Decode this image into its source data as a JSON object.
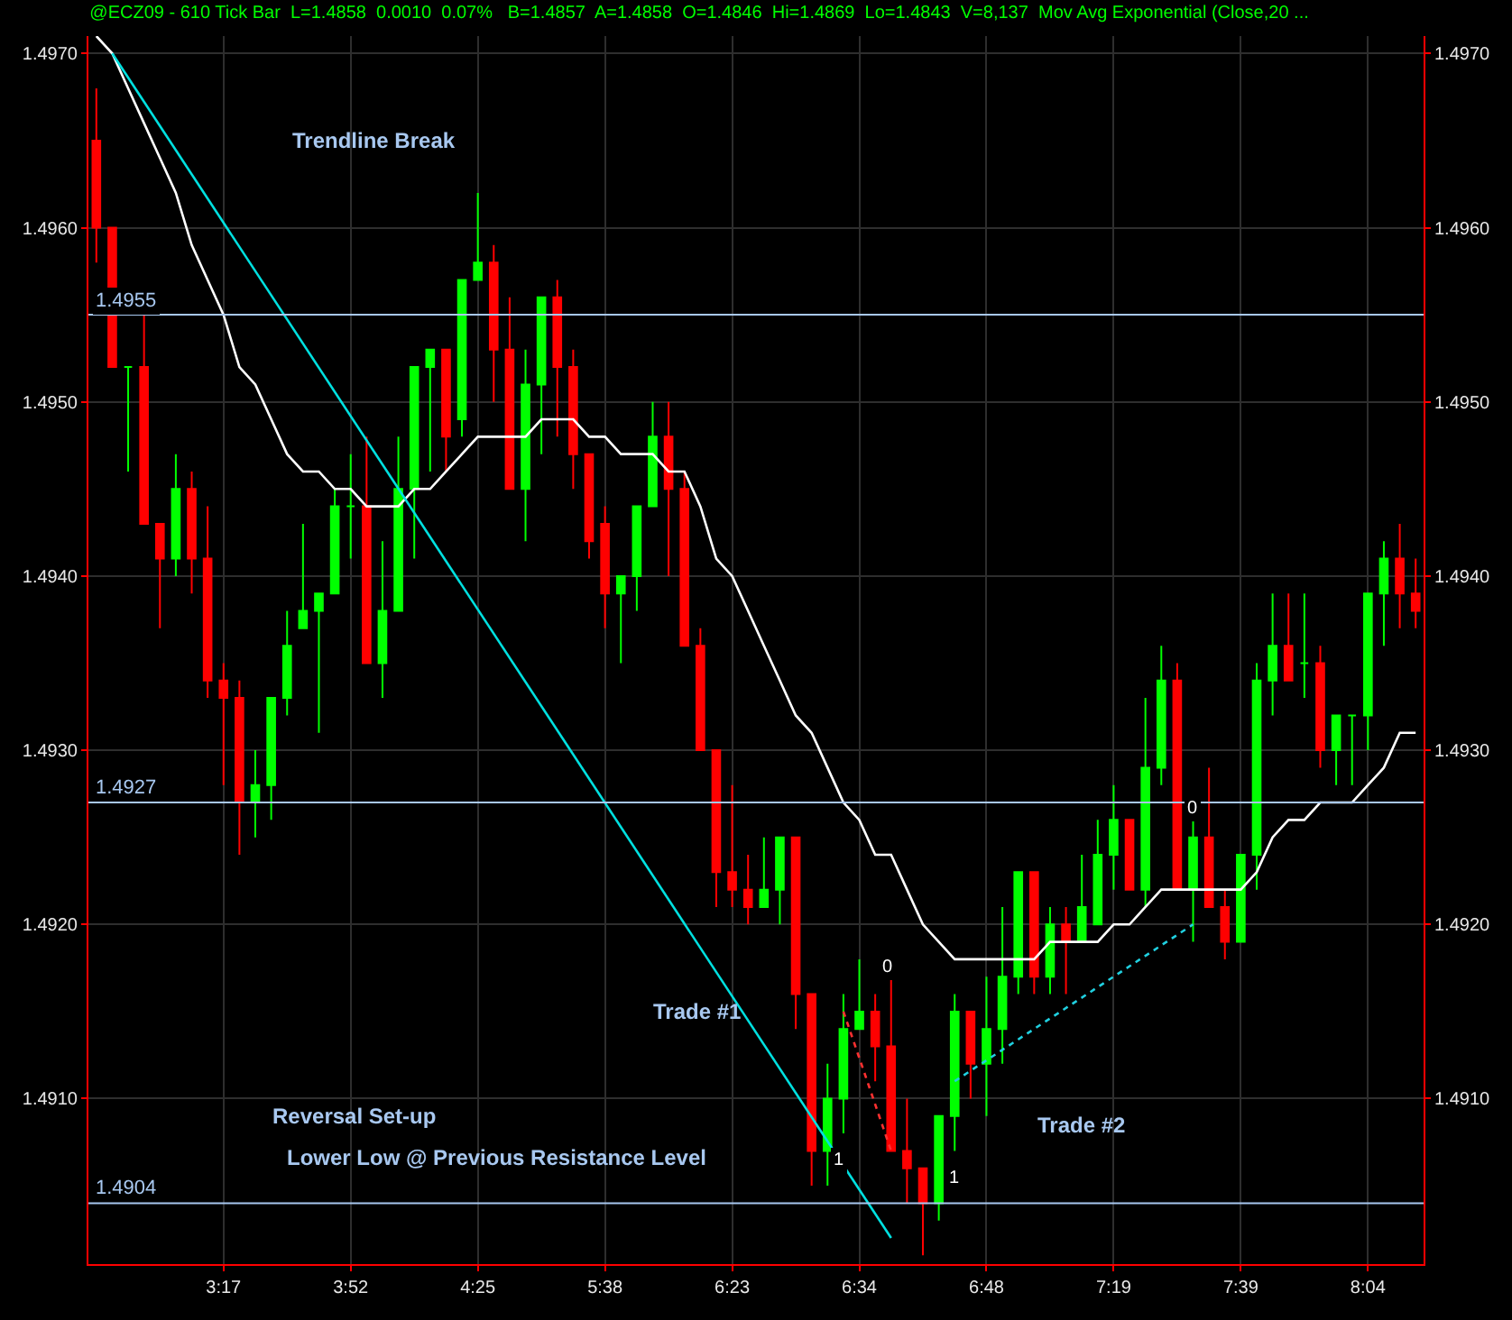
{
  "chart_data": {
    "type": "candlestick",
    "title": "@ECZ09 - 610 Tick Bar  L=1.4858  0.0010  0.07%   B=1.4857  A=1.4858  O=1.4846  Hi=1.4869  Lo=1.4843  V=8,137  Mov Avg Exponential (Close,20 ...",
    "categories": [
      null,
      null,
      null,
      null,
      null,
      null,
      null,
      null,
      "3:17",
      null,
      null,
      null,
      null,
      null,
      null,
      null,
      "3:52",
      null,
      null,
      null,
      null,
      null,
      null,
      null,
      "4:25",
      null,
      null,
      null,
      null,
      null,
      null,
      null,
      "5:38",
      null,
      null,
      null,
      null,
      null,
      null,
      null,
      "6:23",
      null,
      null,
      null,
      null,
      null,
      null,
      null,
      "6:34",
      null,
      null,
      null,
      null,
      null,
      null,
      null,
      "6:48",
      null,
      null,
      null,
      null,
      null,
      null,
      null,
      "7:19",
      null,
      null,
      null,
      null,
      null,
      null,
      null,
      "7:39",
      null,
      null,
      null,
      null,
      null,
      null,
      null,
      "8:04",
      null,
      null,
      null
    ],
    "ohlc": [
      [
        1.4965,
        1.4968,
        1.4958,
        1.496
      ],
      [
        1.496,
        1.496,
        1.4952,
        1.4952
      ],
      [
        1.4952,
        1.4952,
        1.4946,
        1.4952
      ],
      [
        1.4952,
        1.4955,
        1.4943,
        1.4943
      ],
      [
        1.4943,
        1.4943,
        1.4937,
        1.4941
      ],
      [
        1.4941,
        1.4947,
        1.494,
        1.4945
      ],
      [
        1.4945,
        1.4946,
        1.4939,
        1.4941
      ],
      [
        1.4941,
        1.4944,
        1.4933,
        1.4934
      ],
      [
        1.4934,
        1.4935,
        1.4928,
        1.4933
      ],
      [
        1.4933,
        1.4934,
        1.4924,
        1.4927
      ],
      [
        1.4927,
        1.493,
        1.4925,
        1.4928
      ],
      [
        1.4928,
        1.4933,
        1.4926,
        1.4933
      ],
      [
        1.4933,
        1.4938,
        1.4932,
        1.4936
      ],
      [
        1.4937,
        1.4943,
        1.4937,
        1.4938
      ],
      [
        1.4938,
        1.4939,
        1.4931,
        1.4939
      ],
      [
        1.4939,
        1.4945,
        1.4939,
        1.4944
      ],
      [
        1.4944,
        1.4947,
        1.4941,
        1.4944
      ],
      [
        1.4944,
        1.4948,
        1.4935,
        1.4935
      ],
      [
        1.4935,
        1.4942,
        1.4933,
        1.4938
      ],
      [
        1.4938,
        1.4948,
        1.4938,
        1.4945
      ],
      [
        1.4945,
        1.4952,
        1.4941,
        1.4952
      ],
      [
        1.4952,
        1.4953,
        1.4946,
        1.4953
      ],
      [
        1.4953,
        1.4953,
        1.4946,
        1.4948
      ],
      [
        1.4949,
        1.4957,
        1.4948,
        1.4957
      ],
      [
        1.4957,
        1.4962,
        1.4957,
        1.4958
      ],
      [
        1.4958,
        1.4959,
        1.495,
        1.4953
      ],
      [
        1.4953,
        1.4956,
        1.4945,
        1.4945
      ],
      [
        1.4945,
        1.4953,
        1.4942,
        1.4951
      ],
      [
        1.4951,
        1.4956,
        1.4947,
        1.4956
      ],
      [
        1.4956,
        1.4957,
        1.4948,
        1.4952
      ],
      [
        1.4952,
        1.4953,
        1.4945,
        1.4947
      ],
      [
        1.4947,
        1.4947,
        1.4941,
        1.4942
      ],
      [
        1.4943,
        1.4944,
        1.4937,
        1.4939
      ],
      [
        1.4939,
        1.494,
        1.4935,
        1.494
      ],
      [
        1.494,
        1.4944,
        1.4938,
        1.4944
      ],
      [
        1.4944,
        1.495,
        1.4944,
        1.4948
      ],
      [
        1.4948,
        1.495,
        1.494,
        1.4945
      ],
      [
        1.4945,
        1.4946,
        1.4936,
        1.4936
      ],
      [
        1.4936,
        1.4937,
        1.493,
        1.493
      ],
      [
        1.493,
        1.493,
        1.4921,
        1.4923
      ],
      [
        1.4923,
        1.4928,
        1.4921,
        1.4922
      ],
      [
        1.4922,
        1.4924,
        1.492,
        1.4921
      ],
      [
        1.4921,
        1.4925,
        1.4921,
        1.4922
      ],
      [
        1.4922,
        1.4925,
        1.492,
        1.4925
      ],
      [
        1.4925,
        1.4925,
        1.4914,
        1.4916
      ],
      [
        1.4916,
        1.4916,
        1.4905,
        1.4907
      ],
      [
        1.4907,
        1.4912,
        1.4905,
        1.491
      ],
      [
        1.491,
        1.4916,
        1.4908,
        1.4914
      ],
      [
        1.4914,
        1.4918,
        1.4914,
        1.4915
      ],
      [
        1.4915,
        1.4916,
        1.4911,
        1.4913
      ],
      [
        1.4913,
        1.4917,
        1.4907,
        1.4907
      ],
      [
        1.4907,
        1.491,
        1.4904,
        1.4906
      ],
      [
        1.4906,
        1.4906,
        1.4901,
        1.4904
      ],
      [
        1.4904,
        1.4909,
        1.4903,
        1.4909
      ],
      [
        1.4909,
        1.4916,
        1.4907,
        1.4915
      ],
      [
        1.4915,
        1.4915,
        1.491,
        1.4912
      ],
      [
        1.4912,
        1.4917,
        1.4909,
        1.4914
      ],
      [
        1.4914,
        1.4921,
        1.4912,
        1.4917
      ],
      [
        1.4917,
        1.4923,
        1.4916,
        1.4923
      ],
      [
        1.4923,
        1.4923,
        1.4916,
        1.4917
      ],
      [
        1.4917,
        1.4921,
        1.4916,
        1.492
      ],
      [
        1.492,
        1.4921,
        1.4916,
        1.4919
      ],
      [
        1.4919,
        1.4924,
        1.4919,
        1.4921
      ],
      [
        1.492,
        1.4926,
        1.492,
        1.4924
      ],
      [
        1.4924,
        1.4928,
        1.4922,
        1.4926
      ],
      [
        1.4926,
        1.4926,
        1.4922,
        1.4922
      ],
      [
        1.4922,
        1.4933,
        1.4921,
        1.4929
      ],
      [
        1.4929,
        1.4936,
        1.4928,
        1.4934
      ],
      [
        1.4934,
        1.4935,
        1.4922,
        1.4922
      ],
      [
        1.4922,
        1.4926,
        1.4919,
        1.4925
      ],
      [
        1.4925,
        1.4929,
        1.4921,
        1.4921
      ],
      [
        1.4921,
        1.4922,
        1.4918,
        1.4919
      ],
      [
        1.4919,
        1.4924,
        1.4919,
        1.4924
      ],
      [
        1.4924,
        1.4935,
        1.4922,
        1.4934
      ],
      [
        1.4934,
        1.4939,
        1.4932,
        1.4936
      ],
      [
        1.4936,
        1.4939,
        1.4934,
        1.4934
      ],
      [
        1.4935,
        1.4939,
        1.4933,
        1.4935
      ],
      [
        1.4935,
        1.4936,
        1.4929,
        1.493
      ],
      [
        1.493,
        1.4932,
        1.4928,
        1.4932
      ],
      [
        1.4932,
        1.4932,
        1.4928,
        1.4932
      ],
      [
        1.4932,
        1.4939,
        1.493,
        1.4939
      ],
      [
        1.4939,
        1.4942,
        1.4936,
        1.4941
      ],
      [
        1.4941,
        1.4943,
        1.4937,
        1.4939
      ],
      [
        1.4939,
        1.4941,
        1.4937,
        1.4938
      ]
    ],
    "colors": [
      "#ff0000",
      "#ff0000",
      "#00ff00",
      "#ff0000",
      "#ff0000",
      "#00ff00",
      "#ff0000",
      "#ff0000",
      "#ff0000",
      "#ff0000",
      "#00ff00",
      "#00ff00",
      "#00ff00",
      "#00ff00",
      "#00ff00",
      "#00ff00",
      "#00ff00",
      "#ff0000",
      "#00ff00",
      "#00ff00",
      "#00ff00",
      "#00ff00",
      "#ff0000",
      "#00ff00",
      "#00ff00",
      "#ff0000",
      "#ff0000",
      "#00ff00",
      "#00ff00",
      "#ff0000",
      "#ff0000",
      "#ff0000",
      "#ff0000",
      "#00ff00",
      "#00ff00",
      "#00ff00",
      "#ff0000",
      "#ff0000",
      "#ff0000",
      "#ff0000",
      "#ff0000",
      "#ff0000",
      "#00ff00",
      "#00ff00",
      "#ff0000",
      "#ff0000",
      "#00ff00",
      "#00ff00",
      "#00ff00",
      "#ff0000",
      "#ff0000",
      "#ff0000",
      "#ff0000",
      "#00ff00",
      "#00ff00",
      "#ff0000",
      "#00ff00",
      "#00ff00",
      "#00ff00",
      "#ff0000",
      "#00ff00",
      "#ff0000",
      "#00ff00",
      "#00ff00",
      "#00ff00",
      "#ff0000",
      "#00ff00",
      "#00ff00",
      "#ff0000",
      "#00ff00",
      "#ff0000",
      "#ff0000",
      "#00ff00",
      "#00ff00",
      "#00ff00",
      "#ff0000",
      "#00ff00",
      "#ff0000",
      "#00ff00",
      "#00ff00",
      "#00ff00",
      "#00ff00",
      "#ff0000",
      "#ff0000"
    ],
    "series": [
      {
        "type": "line",
        "color": "#ffffff",
        "line_style": "solid",
        "values": [
          1.4971,
          1.497,
          1.4968,
          1.4966,
          1.4964,
          1.4962,
          1.4959,
          1.4957,
          1.4955,
          1.4952,
          1.4951,
          1.4949,
          1.4947,
          1.4946,
          1.4946,
          1.4945,
          1.4945,
          1.4944,
          1.4944,
          1.4944,
          1.4945,
          1.4945,
          1.4946,
          1.4947,
          1.4948,
          1.4948,
          1.4948,
          1.4948,
          1.4949,
          1.4949,
          1.4949,
          1.4948,
          1.4948,
          1.4947,
          1.4947,
          1.4947,
          1.4946,
          1.4946,
          1.4944,
          1.4941,
          1.494,
          1.4938,
          1.4936,
          1.4934,
          1.4932,
          1.4931,
          1.4929,
          1.4927,
          1.4926,
          1.4924,
          1.4924,
          1.4922,
          1.492,
          1.4919,
          1.4918,
          1.4918,
          1.4918,
          1.4918,
          1.4918,
          1.4918,
          1.4919,
          1.4919,
          1.4919,
          1.4919,
          1.492,
          1.492,
          1.4921,
          1.4922,
          1.4922,
          1.4922,
          1.4922,
          1.4922,
          1.4922,
          1.4923,
          1.4925,
          1.4926,
          1.4926,
          1.4927,
          1.4927,
          1.4927,
          1.4928,
          1.4929,
          1.4931,
          1.4931
        ]
      },
      {
        "type": "line",
        "color": "#00e0e0",
        "line_style": "solid",
        "values": [
          null,
          1.497,
          null,
          null,
          null,
          null,
          null,
          null,
          null,
          null,
          null,
          null,
          null,
          null,
          null,
          null,
          null,
          null,
          null,
          null,
          null,
          null,
          null,
          null,
          null,
          null,
          null,
          null,
          null,
          null,
          null,
          null,
          null,
          null,
          null,
          null,
          null,
          null,
          null,
          null,
          null,
          null,
          null,
          null,
          null,
          null,
          null,
          null,
          null,
          null,
          1.4902,
          null,
          null,
          null,
          null,
          null,
          null,
          null,
          null,
          null,
          null,
          null,
          null,
          null,
          null,
          null,
          null,
          null,
          null,
          null,
          null,
          null,
          null,
          null,
          null,
          null,
          null,
          null,
          null,
          null,
          null,
          null,
          null,
          null
        ]
      },
      {
        "type": "line",
        "color": "#ff3030",
        "line_style": "dotted",
        "values": [
          null,
          null,
          null,
          null,
          null,
          null,
          null,
          null,
          null,
          null,
          null,
          null,
          null,
          null,
          null,
          null,
          null,
          null,
          null,
          null,
          null,
          null,
          null,
          null,
          null,
          null,
          null,
          null,
          null,
          null,
          null,
          null,
          null,
          null,
          null,
          null,
          null,
          null,
          null,
          null,
          null,
          null,
          null,
          null,
          null,
          null,
          null,
          1.4915,
          null,
          null,
          1.4907,
          null,
          null,
          null,
          null,
          null,
          null,
          null,
          null,
          null,
          null,
          null,
          null,
          null,
          null,
          null,
          null,
          null,
          null,
          null,
          null,
          null,
          null,
          null,
          null,
          null,
          null,
          null,
          null,
          null,
          null,
          null,
          null,
          null
        ]
      },
      {
        "type": "line",
        "color": "#20d0e0",
        "line_style": "dotted",
        "values": [
          null,
          null,
          null,
          null,
          null,
          null,
          null,
          null,
          null,
          null,
          null,
          null,
          null,
          null,
          null,
          null,
          null,
          null,
          null,
          null,
          null,
          null,
          null,
          null,
          null,
          null,
          null,
          null,
          null,
          null,
          null,
          null,
          null,
          null,
          null,
          null,
          null,
          null,
          null,
          null,
          null,
          null,
          null,
          null,
          null,
          null,
          null,
          null,
          null,
          null,
          null,
          null,
          null,
          null,
          1.4911,
          null,
          null,
          null,
          null,
          null,
          null,
          null,
          null,
          null,
          null,
          null,
          null,
          null,
          null,
          1.492,
          null,
          null,
          null,
          null,
          null,
          null,
          null,
          null,
          null,
          null,
          null,
          null,
          null,
          null
        ]
      }
    ],
    "ylim": [
      1.49005,
      1.4971
    ],
    "yticks": [
      {
        "value": 1.491,
        "label": "1.4910"
      },
      {
        "value": 1.492,
        "label": "1.4920"
      },
      {
        "value": 1.493,
        "label": "1.4930"
      },
      {
        "value": 1.494,
        "label": "1.4940"
      },
      {
        "value": 1.495,
        "label": "1.4950"
      },
      {
        "value": 1.496,
        "label": "1.4960"
      },
      {
        "value": 1.497,
        "label": "1.4970"
      }
    ],
    "y2lim": [
      1.49005,
      1.4971
    ],
    "y2ticks": [
      {
        "value": 1.491,
        "label": "1.4910"
      },
      {
        "value": 1.492,
        "label": "1.4920"
      },
      {
        "value": 1.493,
        "label": "1.4930"
      },
      {
        "value": 1.494,
        "label": "1.4940"
      },
      {
        "value": 1.495,
        "label": "1.4950"
      },
      {
        "value": 1.496,
        "label": "1.4960"
      },
      {
        "value": 1.497,
        "label": "1.4970"
      }
    ],
    "ref_lines": [
      {
        "axis": "y",
        "value": 1.4955,
        "label": "1.4955",
        "color": "#a8c8f0"
      },
      {
        "axis": "y",
        "value": 1.4927,
        "label": "1.4927",
        "color": "#a8c8f0"
      },
      {
        "axis": "y",
        "value": 1.4904,
        "label": "1.4904",
        "color": "#a8c8f0"
      }
    ],
    "annotations": [
      "Trendline Break",
      "Trade #1",
      "Trade #2",
      "Reversal Set-up",
      "Lower Low @ Previous Resistance Level",
      "0",
      "1",
      "1",
      "0"
    ],
    "grid": true
  }
}
